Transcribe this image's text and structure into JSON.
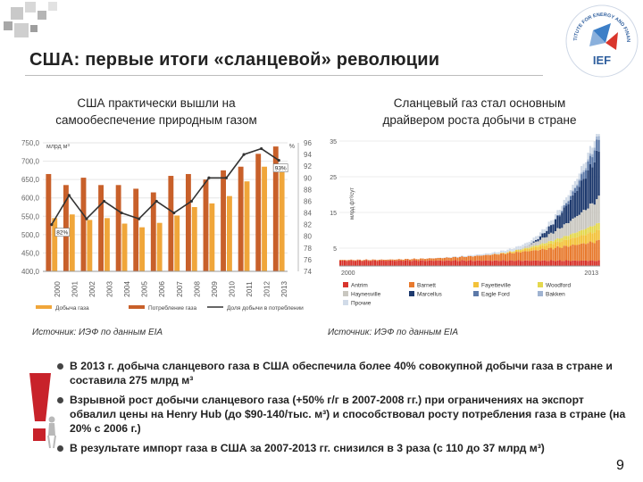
{
  "slide": {
    "title": "США: первые итоги «сланцевой» революции",
    "page_number": "9",
    "logo_text_top": "INSTITUTE FOR ENERGY AND FINANCE",
    "logo_text": "IEF"
  },
  "left_panel": {
    "subtitle_line1": "США практически вышли на",
    "subtitle_line2": "самообеспечение природным газом",
    "source": "Источник: ИЭФ по данным EIA"
  },
  "right_panel": {
    "subtitle_line1": "Сланцевый газ стал основным",
    "subtitle_line2": "драйвером роста добычи в стране",
    "source": "Источник: ИЭФ по данным EIA"
  },
  "bullets": [
    {
      "text": "В 2013 г. добыча сланцевого газа в США обеспечила более 40% совокупной добычи газа в стране и составила 275 млрд м³"
    },
    {
      "text": "Взрывной рост добычи сланцевого газа (+50% г/г в 2007-2008 гг.) при ограничениях на экспорт обвалил цены на Henry Hub (до $90-140/тыс. м³) и способствовал росту потребления газа в стране (на 20% с 2006 г.)"
    },
    {
      "text": "В результате импорт газа в США за 2007-2013 гг. снизился в 3 раза (с 110 до 37 млрд м³)"
    }
  ],
  "colors": {
    "production": "#F0A63A",
    "consumption": "#C8602A",
    "ratio_line": "#333333",
    "bullet": "#444444"
  },
  "chart_data": [
    {
      "type": "bar",
      "unit_label": "млрд м³",
      "right_unit_label": "%",
      "categories": [
        "2000",
        "2001",
        "2002",
        "2003",
        "2004",
        "2005",
        "2006",
        "2007",
        "2008",
        "2009",
        "2010",
        "2011",
        "2012",
        "2013"
      ],
      "series": [
        {
          "name": "Добыча газа",
          "values": [
            545,
            555,
            540,
            545,
            530,
            520,
            532,
            552,
            575,
            585,
            605,
            645,
            685,
            690
          ]
        },
        {
          "name": "Потребление газа",
          "values": [
            665,
            635,
            655,
            635,
            635,
            625,
            615,
            660,
            665,
            650,
            675,
            685,
            720,
            740
          ]
        },
        {
          "name": "Доля добычи в потреблении",
          "axis": "right",
          "values": [
            82,
            87,
            83,
            86,
            84,
            83,
            86,
            84,
            86,
            90,
            90,
            94,
            95,
            93
          ]
        }
      ],
      "ylim_left": [
        400,
        750
      ],
      "yticks_left": [
        "750,0",
        "700,0",
        "650,0",
        "600,0",
        "550,0",
        "500,0",
        "450,0",
        "400,0"
      ],
      "ylim_right": [
        74,
        96
      ],
      "yticks_right": [
        "96",
        "94",
        "92",
        "90",
        "88",
        "86",
        "84",
        "82",
        "80",
        "78",
        "76",
        "74"
      ],
      "annotations": [
        {
          "label": "93%",
          "category": "2013"
        },
        {
          "label": "82%",
          "category": "2000"
        }
      ],
      "legend": [
        "Добыча газа",
        "Потребление газа",
        "Доля добычи в потреблении"
      ]
    },
    {
      "type": "area",
      "unit_label": "млрд фт³/сут",
      "yticks": [
        "35",
        "25",
        "15",
        "5"
      ],
      "ylim": [
        0,
        35
      ],
      "x_start_label": "2000",
      "x_end_label": "2013",
      "series": [
        {
          "name": "Antrim",
          "color": "#D8342C",
          "start": 1.5,
          "end": 1.5
        },
        {
          "name": "Barnett",
          "color": "#E87A2E",
          "start": 0.2,
          "end": 5.5
        },
        {
          "name": "Fayetteville",
          "color": "#F3C23A",
          "start": 0.0,
          "end": 3.0
        },
        {
          "name": "Woodford",
          "color": "#E4D84E",
          "start": 0.0,
          "end": 2.0
        },
        {
          "name": "Haynesville",
          "color": "#C9C7C0",
          "start": 0.0,
          "end": 7.0
        },
        {
          "name": "Marcellus",
          "color": "#1E3A6E",
          "start": 0.0,
          "end": 13.0
        },
        {
          "name": "Eagle Ford",
          "color": "#5C79A8",
          "start": 0.0,
          "end": 3.5
        },
        {
          "name": "Bakken",
          "color": "#9FB3D1",
          "start": 0.0,
          "end": 1.0
        },
        {
          "name": "Прочие",
          "color": "#D1DBE8",
          "start": 0.0,
          "end": 2.0
        }
      ]
    }
  ]
}
